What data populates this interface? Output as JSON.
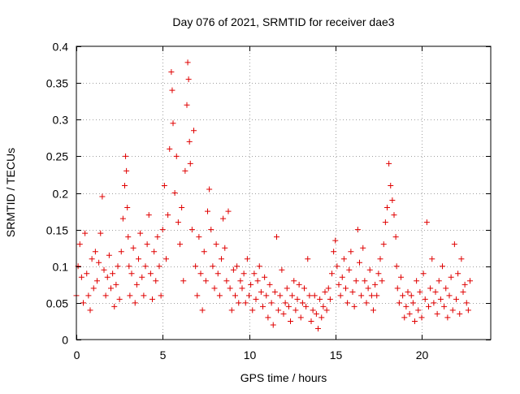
{
  "chart_data": {
    "type": "scatter",
    "title": "Day 076 of 2021, SRMTID for receiver dae3",
    "xlabel": "GPS time / hours",
    "ylabel": "SRMTID / TECUs",
    "xlim": [
      0,
      24
    ],
    "ylim": [
      0,
      0.4
    ],
    "xticks": [
      0,
      5,
      10,
      15,
      20
    ],
    "xtick_labels": [
      "0",
      "5",
      "10",
      "15",
      "20"
    ],
    "yticks": [
      0,
      0.05,
      0.1,
      0.15,
      0.2,
      0.25,
      0.3,
      0.35,
      0.4
    ],
    "ytick_labels": [
      "0",
      "0.05",
      "0.1",
      "0.15",
      "0.2",
      "0.25",
      "0.3",
      "0.35",
      "0.4"
    ],
    "grid": true,
    "marker": "+",
    "marker_color": "#e00000",
    "series": [
      {
        "name": "dae3",
        "x": [
          0.0,
          0.1,
          0.2,
          0.3,
          0.4,
          0.5,
          0.6,
          0.7,
          0.8,
          0.9,
          1.0,
          1.1,
          1.2,
          1.3,
          1.4,
          1.5,
          1.6,
          1.7,
          1.8,
          1.9,
          2.0,
          2.1,
          2.2,
          2.3,
          2.4,
          2.5,
          2.6,
          2.7,
          2.8,
          2.85,
          2.9,
          2.95,
          3.0,
          3.05,
          3.1,
          3.2,
          3.3,
          3.4,
          3.5,
          3.6,
          3.7,
          3.8,
          3.9,
          4.0,
          4.1,
          4.2,
          4.3,
          4.4,
          4.5,
          4.6,
          4.7,
          4.8,
          4.9,
          5.0,
          5.1,
          5.2,
          5.3,
          5.4,
          5.5,
          5.55,
          5.6,
          5.7,
          5.8,
          5.9,
          6.0,
          6.1,
          6.2,
          6.3,
          6.4,
          6.45,
          6.5,
          6.55,
          6.6,
          6.7,
          6.8,
          6.9,
          7.0,
          7.1,
          7.2,
          7.3,
          7.4,
          7.5,
          7.6,
          7.7,
          7.8,
          7.9,
          8.0,
          8.1,
          8.2,
          8.3,
          8.4,
          8.5,
          8.6,
          8.7,
          8.8,
          8.9,
          9.0,
          9.1,
          9.2,
          9.3,
          9.4,
          9.5,
          9.6,
          9.7,
          9.8,
          9.9,
          10.0,
          10.1,
          10.2,
          10.3,
          10.4,
          10.5,
          10.6,
          10.7,
          10.8,
          10.9,
          11.0,
          11.1,
          11.2,
          11.3,
          11.4,
          11.5,
          11.6,
          11.7,
          11.8,
          11.9,
          12.0,
          12.1,
          12.2,
          12.3,
          12.4,
          12.5,
          12.6,
          12.7,
          12.8,
          12.9,
          13.0,
          13.1,
          13.2,
          13.3,
          13.4,
          13.5,
          13.6,
          13.7,
          13.8,
          13.9,
          14.0,
          14.1,
          14.2,
          14.3,
          14.4,
          14.5,
          14.6,
          14.7,
          14.8,
          14.9,
          15.0,
          15.1,
          15.2,
          15.3,
          15.4,
          15.5,
          15.6,
          15.7,
          15.8,
          15.9,
          16.0,
          16.1,
          16.2,
          16.3,
          16.4,
          16.5,
          16.6,
          16.7,
          16.8,
          16.9,
          17.0,
          17.1,
          17.2,
          17.3,
          17.4,
          17.5,
          17.6,
          17.7,
          17.8,
          17.9,
          18.0,
          18.1,
          18.2,
          18.3,
          18.4,
          18.5,
          18.55,
          18.6,
          18.7,
          18.8,
          18.9,
          19.0,
          19.1,
          19.2,
          19.3,
          19.4,
          19.5,
          19.6,
          19.7,
          19.8,
          19.9,
          20.0,
          20.1,
          20.2,
          20.3,
          20.4,
          20.5,
          20.6,
          20.7,
          20.8,
          20.9,
          21.0,
          21.1,
          21.2,
          21.3,
          21.4,
          21.5,
          21.6,
          21.7,
          21.8,
          21.9,
          22.0,
          22.1,
          22.2,
          22.3,
          22.4,
          22.5,
          22.6,
          22.7,
          22.8
        ],
        "y": [
          0.06,
          0.1,
          0.13,
          0.085,
          0.05,
          0.145,
          0.09,
          0.06,
          0.04,
          0.11,
          0.07,
          0.12,
          0.08,
          0.105,
          0.145,
          0.195,
          0.095,
          0.06,
          0.085,
          0.115,
          0.07,
          0.09,
          0.045,
          0.075,
          0.1,
          0.055,
          0.12,
          0.165,
          0.21,
          0.25,
          0.23,
          0.18,
          0.14,
          0.1,
          0.06,
          0.09,
          0.125,
          0.05,
          0.075,
          0.11,
          0.145,
          0.085,
          0.06,
          0.1,
          0.13,
          0.17,
          0.09,
          0.055,
          0.12,
          0.08,
          0.14,
          0.1,
          0.06,
          0.15,
          0.21,
          0.11,
          0.17,
          0.26,
          0.365,
          0.34,
          0.295,
          0.2,
          0.25,
          0.16,
          0.13,
          0.18,
          0.08,
          0.23,
          0.32,
          0.378,
          0.355,
          0.27,
          0.24,
          0.15,
          0.285,
          0.1,
          0.06,
          0.14,
          0.09,
          0.04,
          0.12,
          0.08,
          0.175,
          0.205,
          0.15,
          0.1,
          0.07,
          0.13,
          0.09,
          0.06,
          0.11,
          0.165,
          0.125,
          0.08,
          0.175,
          0.07,
          0.04,
          0.095,
          0.06,
          0.1,
          0.05,
          0.08,
          0.07,
          0.09,
          0.05,
          0.11,
          0.06,
          0.075,
          0.04,
          0.09,
          0.055,
          0.08,
          0.1,
          0.065,
          0.045,
          0.085,
          0.06,
          0.03,
          0.075,
          0.05,
          0.02,
          0.065,
          0.14,
          0.04,
          0.06,
          0.095,
          0.035,
          0.05,
          0.07,
          0.045,
          0.025,
          0.06,
          0.08,
          0.04,
          0.055,
          0.075,
          0.03,
          0.05,
          0.07,
          0.045,
          0.11,
          0.06,
          0.025,
          0.04,
          0.06,
          0.035,
          0.015,
          0.055,
          0.03,
          0.045,
          0.065,
          0.04,
          0.07,
          0.055,
          0.09,
          0.12,
          0.135,
          0.1,
          0.075,
          0.06,
          0.085,
          0.11,
          0.07,
          0.05,
          0.095,
          0.12,
          0.065,
          0.045,
          0.08,
          0.15,
          0.105,
          0.06,
          0.125,
          0.08,
          0.05,
          0.07,
          0.095,
          0.06,
          0.04,
          0.075,
          0.06,
          0.09,
          0.11,
          0.08,
          0.13,
          0.16,
          0.18,
          0.24,
          0.21,
          0.19,
          0.17,
          0.14,
          0.1,
          0.07,
          0.05,
          0.085,
          0.06,
          0.03,
          0.045,
          0.065,
          0.035,
          0.06,
          0.05,
          0.025,
          0.08,
          0.04,
          0.065,
          0.03,
          0.09,
          0.055,
          0.16,
          0.045,
          0.07,
          0.11,
          0.05,
          0.065,
          0.035,
          0.08,
          0.055,
          0.1,
          0.045,
          0.07,
          0.03,
          0.06,
          0.085,
          0.04,
          0.13,
          0.055,
          0.09,
          0.035,
          0.11,
          0.065,
          0.075,
          0.05,
          0.04,
          0.08
        ]
      }
    ]
  }
}
